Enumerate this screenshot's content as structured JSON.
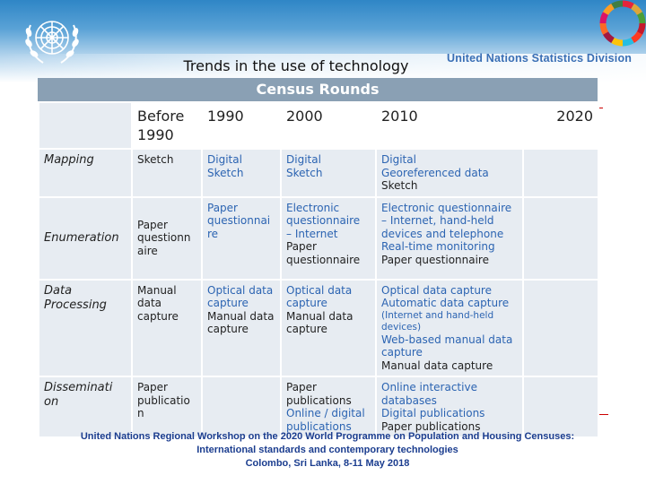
{
  "header": {
    "title": "Trends in the use of technology",
    "division": "United Nations Statistics Division",
    "band_label": "Census Rounds"
  },
  "table": {
    "columns": [
      "",
      "Before 1990",
      "1990",
      "2000",
      "2010",
      "2020"
    ],
    "rows": [
      {
        "label": "Mapping",
        "cells": [
          [
            "Sketch"
          ],
          [
            "Digital",
            "Sketch"
          ],
          [
            "Digital",
            "Sketch"
          ],
          [
            "Digital",
            "Georeferenced data",
            "Sketch"
          ],
          []
        ]
      },
      {
        "label": "Enumeration",
        "cells": [
          [
            "Paper",
            "questionn",
            "aire"
          ],
          [
            "Paper",
            "questionnai",
            "re"
          ],
          [
            "Electronic",
            "questionnaire",
            "– Internet",
            "Paper",
            "questionnaire"
          ],
          [
            "Electronic questionnaire",
            "– Internet, hand-held",
            "devices and telephone",
            "Real-time monitoring",
            "Paper questionnaire"
          ],
          []
        ]
      },
      {
        "label": "Data Processing",
        "cells": [
          [
            "Manual",
            "data",
            "capture"
          ],
          [
            "Optical data",
            "capture",
            "Manual data",
            "capture"
          ],
          [
            "Optical data",
            "capture",
            "Manual data",
            "capture"
          ],
          [
            "Optical data capture",
            "Automatic data capture",
            "(Internet and hand-held",
            "devices)",
            "Web-based manual data",
            "capture",
            "Manual data capture"
          ],
          []
        ]
      },
      {
        "label": "Disseminati on",
        "cells": [
          [
            "Paper",
            "publicatio",
            "n"
          ],
          [],
          [
            "Paper",
            "publications",
            "Online / digital",
            "publications"
          ],
          [
            "Online interactive",
            "databases",
            "Digital publications",
            "Paper publications"
          ],
          []
        ]
      }
    ]
  },
  "footer": {
    "line1": "United Nations Regional Workshop on the 2020 World Programme on Population and Housing Censuses:",
    "line2": "International standards and contemporary technologies",
    "line3": "Colombo, Sri Lanka, 8-11 May 2018"
  },
  "colors": {
    "band": "#2f86c6",
    "header_bar": "#8aa0b4",
    "cell_bg": "#e7ecf2",
    "blue_text": "#2c64b2",
    "footer_text": "#1b3d8f"
  }
}
